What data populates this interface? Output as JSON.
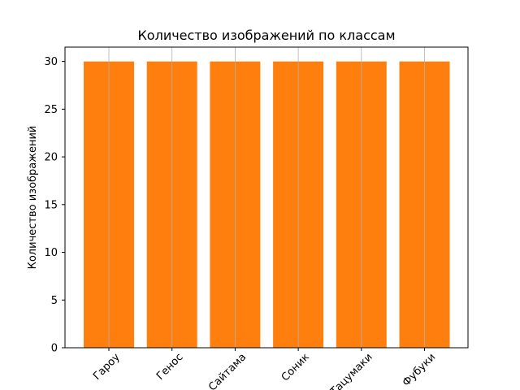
{
  "chart_data": {
    "type": "bar",
    "title": "Количество изображений по классам",
    "xlabel": "",
    "ylabel": "Количество изображений",
    "categories": [
      "Гароу",
      "Генос",
      "Сайтама",
      "Соник",
      "Тацумаки",
      "Фубуки"
    ],
    "values": [
      30,
      30,
      30,
      30,
      30,
      30
    ],
    "ylim": [
      0,
      31.5
    ],
    "yticks": [
      0,
      5,
      10,
      15,
      20,
      25,
      30
    ],
    "bar_color": "#ff7f0e",
    "grid": "vertical gridlines through bar centers",
    "x_tick_rotation": 45
  }
}
